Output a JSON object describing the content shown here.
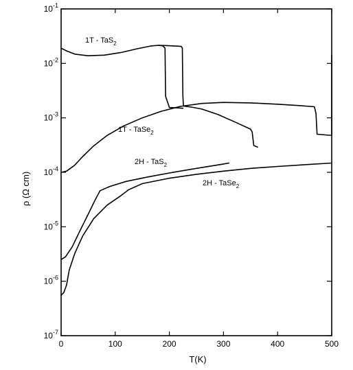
{
  "chart_data": {
    "type": "line",
    "xlabel": "T(K)",
    "ylabel": "ρ (Ω cm)",
    "xlim": [
      0,
      500
    ],
    "ylim_log10": [
      -7,
      -1
    ],
    "yscale": "log",
    "grid": false,
    "x_ticks": [
      {
        "value": 0,
        "label": "0"
      },
      {
        "value": 100,
        "label": "100"
      },
      {
        "value": 200,
        "label": "200"
      },
      {
        "value": 300,
        "label": "300"
      },
      {
        "value": 400,
        "label": "400"
      },
      {
        "value": 500,
        "label": "500"
      }
    ],
    "y_ticks": [
      {
        "exp": -1,
        "base": "10",
        "sup": "-1"
      },
      {
        "exp": -2,
        "base": "10",
        "sup": "-2"
      },
      {
        "exp": -3,
        "base": "10",
        "sup": "-3"
      },
      {
        "exp": -4,
        "base": "10",
        "sup": "-4"
      },
      {
        "exp": -5,
        "base": "10",
        "sup": "-5"
      },
      {
        "exp": -6,
        "base": "10",
        "sup": "-6"
      },
      {
        "exp": -7,
        "base": "10",
        "sup": "-7"
      }
    ],
    "series": [
      {
        "name": "1T - TaS2",
        "label_main": "1T - TaS",
        "label_sub": "2",
        "segments": [
          {
            "points": [
              [
                0,
                0.019
              ],
              [
                10,
                0.017
              ],
              [
                25,
                0.0148
              ],
              [
                50,
                0.0138
              ],
              [
                80,
                0.0142
              ],
              [
                110,
                0.0158
              ],
              [
                140,
                0.0185
              ],
              [
                165,
                0.0208
              ],
              [
                180,
                0.0215
              ],
              [
                188,
                0.021
              ],
              [
                192,
                0.019
              ],
              [
                193,
                0.0025
              ],
              [
                200,
                0.00155
              ],
              [
                215,
                0.00152
              ],
              [
                225,
                0.0015
              ]
            ]
          },
          {
            "points": [
              [
                180,
                0.0215
              ],
              [
                195,
                0.0212
              ],
              [
                212,
                0.0208
              ],
              [
                222,
                0.0205
              ],
              [
                224,
                0.019
              ],
              [
                225,
                0.0025
              ],
              [
                226,
                0.00165
              ],
              [
                240,
                0.00158
              ],
              [
                260,
                0.00145
              ],
              [
                290,
                0.00115
              ],
              [
                320,
                0.00085
              ],
              [
                350,
                0.00062
              ],
              [
                353,
                0.00055
              ],
              [
                356,
                0.00031
              ],
              [
                363,
                0.00029
              ]
            ]
          }
        ]
      },
      {
        "name": "1T - TaSe2",
        "label_main": "1T - TaSe",
        "label_sub": "2",
        "segments": [
          {
            "points": [
              [
                0,
                0.0001
              ],
              [
                10,
                0.000105
              ],
              [
                25,
                0.000135
              ],
              [
                40,
                0.000195
              ],
              [
                60,
                0.000305
              ],
              [
                85,
                0.000475
              ],
              [
                115,
                0.000705
              ],
              [
                150,
                0.001
              ],
              [
                185,
                0.00132
              ],
              [
                220,
                0.00162
              ],
              [
                260,
                0.00184
              ],
              [
                300,
                0.00192
              ],
              [
                350,
                0.00188
              ],
              [
                400,
                0.00178
              ],
              [
                440,
                0.00168
              ],
              [
                468,
                0.0016
              ],
              [
                471,
                0.0012
              ],
              [
                473,
                0.0005
              ],
              [
                495,
                0.00048
              ],
              [
                500,
                0.00048
              ]
            ]
          },
          {
            "points": [
              [
                500,
                0.00048
              ],
              [
                500,
                0.014
              ]
            ]
          }
        ]
      },
      {
        "name": "2H - TaS2",
        "label_main": "2H - TaS",
        "label_sub": "2",
        "segments": [
          {
            "points": [
              [
                0,
                2.5e-06
              ],
              [
                8,
                2.8e-06
              ],
              [
                20,
                4.2e-06
              ],
              [
                35,
                8.5e-06
              ],
              [
                50,
                1.7e-05
              ],
              [
                62,
                3e-05
              ],
              [
                72,
                4.6e-05
              ],
              [
                90,
                5.5e-05
              ],
              [
                120,
                6.8e-05
              ],
              [
                160,
                8.2e-05
              ],
              [
                200,
                9.7e-05
              ],
              [
                250,
                0.000118
              ],
              [
                300,
                0.000142
              ],
              [
                310,
                0.000148
              ]
            ]
          }
        ]
      },
      {
        "name": "2H - TaSe2",
        "label_main": "2H - TaSe",
        "label_sub": "2",
        "segments": [
          {
            "points": [
              [
                0,
                5.5e-07
              ],
              [
                5,
                6.2e-07
              ],
              [
                10,
                8.5e-07
              ],
              [
                15,
                1.6e-06
              ],
              [
                25,
                3.2e-06
              ],
              [
                40,
                6.8e-06
              ],
              [
                60,
                1.4e-05
              ],
              [
                85,
                2.5e-05
              ],
              [
                110,
                3.7e-05
              ],
              [
                125,
                4.8e-05
              ],
              [
                150,
                6.2e-05
              ],
              [
                200,
                7.8e-05
              ],
              [
                250,
                9.2e-05
              ],
              [
                300,
                0.000105
              ],
              [
                350,
                0.000118
              ],
              [
                400,
                0.000128
              ],
              [
                450,
                0.000138
              ],
              [
                500,
                0.000148
              ]
            ]
          }
        ]
      }
    ]
  }
}
